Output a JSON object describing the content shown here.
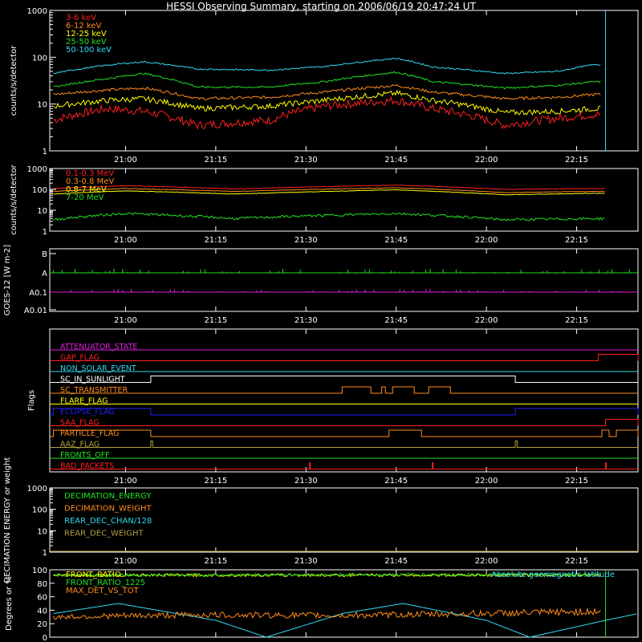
{
  "title": "HESSI Observing Summary, starting on 2006/06/19 20:47:24 UT",
  "colors": {
    "background": "#000000",
    "axis": "#ffffff",
    "red": "#ff2020",
    "orange": "#ff8c1a",
    "yellow": "#ffff00",
    "green": "#20e020",
    "cyan": "#30d8f0",
    "magenta": "#e020e0",
    "blue": "#2020ff",
    "olive": "#b0a040"
  },
  "chart_data": [
    {
      "type": "line",
      "title": "HESSI Observing Summary, starting on 2006/06/19 20:47:24 UT",
      "ylabel": "counts/s/detector",
      "yscale": "log",
      "ylim": [
        1,
        1000
      ],
      "ytick_labels": [
        "1",
        "10",
        "100",
        "1000"
      ],
      "xtick_labels": [
        "21:00",
        "21:15",
        "21:30",
        "21:45",
        "22:00",
        "22:15"
      ],
      "series": [
        {
          "name": "3-6 keV",
          "color": "#ff2020",
          "values": [
            [
              20.8,
              4.5
            ],
            [
              20.95,
              8
            ],
            [
              21.05,
              7
            ],
            [
              21.2,
              3.5
            ],
            [
              21.4,
              4.5
            ],
            [
              21.55,
              9
            ],
            [
              21.75,
              12
            ],
            [
              21.85,
              8
            ],
            [
              22.05,
              3.5
            ],
            [
              22.2,
              5
            ],
            [
              22.3,
              6
            ]
          ]
        },
        {
          "name": "6-12 keV",
          "color": "#ff8c1a",
          "values": [
            [
              20.8,
              16
            ],
            [
              20.95,
              20
            ],
            [
              21.05,
              22
            ],
            [
              21.2,
              13
            ],
            [
              21.4,
              14
            ],
            [
              21.55,
              18
            ],
            [
              21.75,
              25
            ],
            [
              21.85,
              18
            ],
            [
              22.05,
              13
            ],
            [
              22.2,
              14
            ],
            [
              22.3,
              16
            ]
          ]
        },
        {
          "name": "12-25 keV",
          "color": "#ffff00",
          "values": [
            [
              20.8,
              9
            ],
            [
              20.95,
              12
            ],
            [
              21.05,
              13
            ],
            [
              21.2,
              8
            ],
            [
              21.4,
              9
            ],
            [
              21.55,
              12
            ],
            [
              21.75,
              17
            ],
            [
              21.85,
              12
            ],
            [
              22.05,
              6.5
            ],
            [
              22.2,
              7
            ],
            [
              22.3,
              8
            ]
          ]
        },
        {
          "name": "25-50 keV",
          "color": "#20e020",
          "values": [
            [
              20.8,
              23
            ],
            [
              20.95,
              35
            ],
            [
              21.05,
              45
            ],
            [
              21.2,
              23
            ],
            [
              21.4,
              23
            ],
            [
              21.55,
              30
            ],
            [
              21.75,
              48
            ],
            [
              21.85,
              30
            ],
            [
              22.05,
              22
            ],
            [
              22.2,
              25
            ],
            [
              22.3,
              30
            ]
          ]
        },
        {
          "name": "50-100 keV",
          "color": "#30d8f0",
          "values": [
            [
              20.8,
              45
            ],
            [
              20.95,
              68
            ],
            [
              21.05,
              80
            ],
            [
              21.2,
              56
            ],
            [
              21.4,
              53
            ],
            [
              21.55,
              63
            ],
            [
              21.75,
              95
            ],
            [
              21.85,
              62
            ],
            [
              22.05,
              45
            ],
            [
              22.2,
              50
            ],
            [
              22.3,
              70
            ]
          ]
        }
      ]
    },
    {
      "type": "line",
      "ylabel": "counts/s/detector",
      "yscale": "log",
      "ylim": [
        1,
        1000
      ],
      "ytick_labels": [
        "1",
        "10",
        "100",
        "1000"
      ],
      "xtick_labels": [
        "21:00",
        "21:15",
        "21:30",
        "21:45",
        "22:00",
        "22:15"
      ],
      "series": [
        {
          "name": "0.1-0.3 MeV",
          "color": "#ff2020",
          "values": [
            [
              20.8,
              110
            ],
            [
              21.0,
              150
            ],
            [
              21.3,
              105
            ],
            [
              21.75,
              160
            ],
            [
              22.05,
              100
            ],
            [
              22.3,
              110
            ]
          ]
        },
        {
          "name": "0.3-0.8 MeV",
          "color": "#ff8c1a",
          "values": [
            [
              20.8,
              80
            ],
            [
              21.0,
              110
            ],
            [
              21.3,
              80
            ],
            [
              21.75,
              120
            ],
            [
              22.05,
              70
            ],
            [
              22.3,
              80
            ]
          ]
        },
        {
          "name": "0.8-7 MeV",
          "color": "#ffff00",
          "values": [
            [
              20.8,
              60
            ],
            [
              21.0,
              85
            ],
            [
              21.3,
              60
            ],
            [
              21.75,
              95
            ],
            [
              22.05,
              55
            ],
            [
              22.3,
              65
            ]
          ]
        },
        {
          "name": "7-20 MeV",
          "color": "#20e020",
          "values": [
            [
              20.8,
              3.5
            ],
            [
              21.0,
              7
            ],
            [
              21.3,
              4
            ],
            [
              21.75,
              7
            ],
            [
              22.05,
              3.5
            ],
            [
              22.3,
              4
            ]
          ]
        }
      ]
    },
    {
      "type": "line",
      "ylabel": "GOES-12 [W m-2]",
      "ytick_labels": [
        "B",
        "A",
        "A0.1",
        "A0.01"
      ],
      "xtick_labels": [
        "21:00",
        "21:15",
        "21:30",
        "21:45",
        "22:00",
        "22:15"
      ],
      "series": [
        {
          "color": "#20e020",
          "values": [
            [
              20.8,
              "A"
            ],
            [
              22.4,
              "A"
            ]
          ]
        },
        {
          "color": "#e020e0",
          "values": [
            [
              20.8,
              "A0.1"
            ],
            [
              22.4,
              "A0.1"
            ]
          ]
        }
      ]
    },
    {
      "type": "line",
      "ylabel": "Flags",
      "xtick_labels": [
        "21:00",
        "21:15",
        "21:30",
        "21:45",
        "22:00",
        "22:15"
      ],
      "flags": [
        {
          "name": "ATTENUATOR_STATE",
          "color": "#e020e0",
          "on": []
        },
        {
          "name": "GAP_FLAG",
          "color": "#ff2020",
          "on": [
            [
              22.31,
              22.42
            ]
          ]
        },
        {
          "name": "NON_SOLAR_EVENT",
          "color": "#30d8f0",
          "on": []
        },
        {
          "name": "SC_IN_SUNLIGHT",
          "color": "#ffffff",
          "on": [
            [
              21.07,
              22.08
            ]
          ]
        },
        {
          "name": "SC_TRANSMITTER",
          "color": "#ff8c1a",
          "on": [
            [
              21.6,
              21.68
            ],
            [
              21.71,
              21.72
            ],
            [
              21.74,
              21.8
            ],
            [
              21.84,
              21.9
            ]
          ]
        },
        {
          "name": "FLARE_FLAG",
          "color": "#ffff00",
          "on": []
        },
        {
          "name": "ECLIPSE_FLAG",
          "color": "#2020ff",
          "on": [
            [
              20.8,
              21.07
            ],
            [
              22.08,
              22.42
            ]
          ]
        },
        {
          "name": "SAA_FLAG",
          "color": "#ff2020",
          "on": [
            [
              22.33,
              22.42
            ]
          ]
        },
        {
          "name": "PARTICLE_FLAG",
          "color": "#ff8c1a",
          "on": [
            [
              20.8,
              21.07
            ],
            [
              21.73,
              21.82
            ],
            [
              22.32,
              22.34
            ],
            [
              22.36,
              22.42
            ]
          ]
        },
        {
          "name": "AAZ_FLAG",
          "color": "#b0a040",
          "on": [
            [
              21.07,
              21.075
            ],
            [
              22.08,
              22.085
            ]
          ]
        },
        {
          "name": "FRONTS_OFF",
          "color": "#20e020",
          "on": []
        },
        {
          "name": "BAD_PACKETS",
          "color": "#ff2020",
          "on": [
            [
              21.51,
              21.512
            ],
            [
              21.85,
              21.852
            ],
            [
              22.33,
              22.332
            ]
          ]
        }
      ]
    },
    {
      "type": "line",
      "ylabel": "DECIMATION ENERGY or weight",
      "yscale": "log",
      "ylim": [
        1,
        1000
      ],
      "ytick_labels": [
        "1",
        "10",
        "100",
        "1000"
      ],
      "xtick_labels": [
        "21:00",
        "21:15",
        "21:30",
        "21:45",
        "22:00",
        "22:15"
      ],
      "series": [
        {
          "name": "DECIMATION_ENERGY",
          "color": "#20e020",
          "values": []
        },
        {
          "name": "DECIMATION_WEIGHT",
          "color": "#ff8c1a",
          "values": []
        },
        {
          "name": "REAR_DEC_CHAN/128",
          "color": "#30d8f0",
          "values": []
        },
        {
          "name": "REAR_DEC_WEIGHT",
          "color": "#b0a040",
          "values": [
            [
              20.8,
              1
            ],
            [
              22.42,
              1
            ]
          ]
        }
      ]
    },
    {
      "type": "line",
      "ylabel": "Degrees or %",
      "ylim": [
        0,
        100
      ],
      "ytick_labels": [
        "0",
        "20",
        "40",
        "60",
        "80",
        "100"
      ],
      "annotation": "Absolute geomagnetic latitude",
      "series": [
        {
          "name": "FRONT_RATIO",
          "color": "#ffff00",
          "values": [
            [
              20.8,
              92
            ],
            [
              22.32,
              92
            ]
          ]
        },
        {
          "name": "FRONT_RATIO_1225",
          "color": "#20e020",
          "values": [
            [
              20.8,
              92
            ],
            [
              22.32,
              93
            ]
          ]
        },
        {
          "name": "MAX_DET_VS_TOT",
          "color": "#ff8c1a",
          "values": [
            [
              20.8,
              30
            ],
            [
              21.2,
              33
            ],
            [
              21.6,
              32
            ],
            [
              22.0,
              35
            ],
            [
              22.32,
              38
            ]
          ]
        },
        {
          "name": "Absolute geomagnetic latitude",
          "color": "#30d8f0",
          "values": [
            [
              20.8,
              35
            ],
            [
              20.98,
              50
            ],
            [
              21.25,
              25
            ],
            [
              21.39,
              0
            ],
            [
              21.6,
              35
            ],
            [
              21.77,
              50
            ],
            [
              22.0,
              25
            ],
            [
              22.12,
              0
            ],
            [
              22.33,
              25
            ],
            [
              22.42,
              35
            ]
          ]
        }
      ]
    }
  ]
}
